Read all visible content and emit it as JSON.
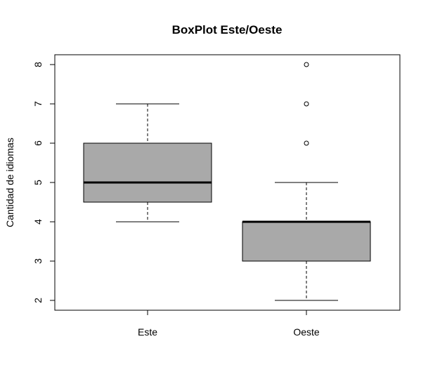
{
  "chart_data": {
    "type": "boxplot",
    "title": "BoxPlot Este/Oeste",
    "xlabel": "",
    "ylabel": "Cantidad de idiomas",
    "categories": [
      "Este",
      "Oeste"
    ],
    "boxes": [
      {
        "category": "Este",
        "whisker_low": 4,
        "q1": 4.5,
        "median": 5,
        "q3": 6,
        "whisker_high": 7,
        "outliers": []
      },
      {
        "category": "Oeste",
        "whisker_low": 2,
        "q1": 3,
        "median": 4,
        "q3": 4,
        "whisker_high": 5,
        "outliers": [
          6,
          7,
          8
        ]
      }
    ],
    "yticks": [
      "2",
      "3",
      "4",
      "5",
      "6",
      "7",
      "8"
    ],
    "ylim": [
      1.75,
      8.25
    ],
    "box_color": "#a9a9a9",
    "grid": false
  }
}
